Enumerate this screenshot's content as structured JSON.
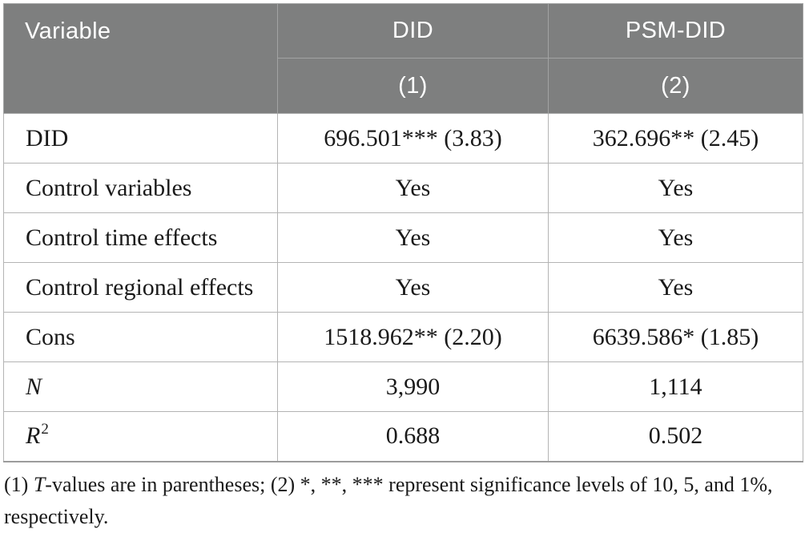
{
  "colors": {
    "header_bg": "#7e7f7f",
    "header_text": "#ffffff",
    "body_text": "#1a1a1a",
    "grid_line": "#b4b4b4"
  },
  "table": {
    "header": {
      "variable": "Variable",
      "did": "DID",
      "psm_did": "PSM-DID",
      "did_model_num": "(1)",
      "psm_did_model_num": "(2)"
    },
    "rows": [
      {
        "label": "DID",
        "did": "696.501*** (3.83)",
        "psm_did": "362.696** (2.45)"
      },
      {
        "label": "Control variables",
        "did": "Yes",
        "psm_did": "Yes"
      },
      {
        "label": "Control time effects",
        "did": "Yes",
        "psm_did": "Yes"
      },
      {
        "label": "Control regional effects",
        "did": "Yes",
        "psm_did": "Yes"
      },
      {
        "label": "Cons",
        "did": "1518.962** (2.20)",
        "psm_did": "6639.586* (1.85)"
      },
      {
        "label": "N",
        "did": "3,990",
        "psm_did": "1,114"
      },
      {
        "label": "R",
        "label_sup": "2",
        "did": "0.688",
        "psm_did": "0.502"
      }
    ],
    "footnote": {
      "prefix": "(1) ",
      "italic_t": "T",
      "body": "-values are in parentheses; (2) *, **, *** represent significance levels of 10, 5, and 1%,",
      "line2": "respectively."
    }
  }
}
